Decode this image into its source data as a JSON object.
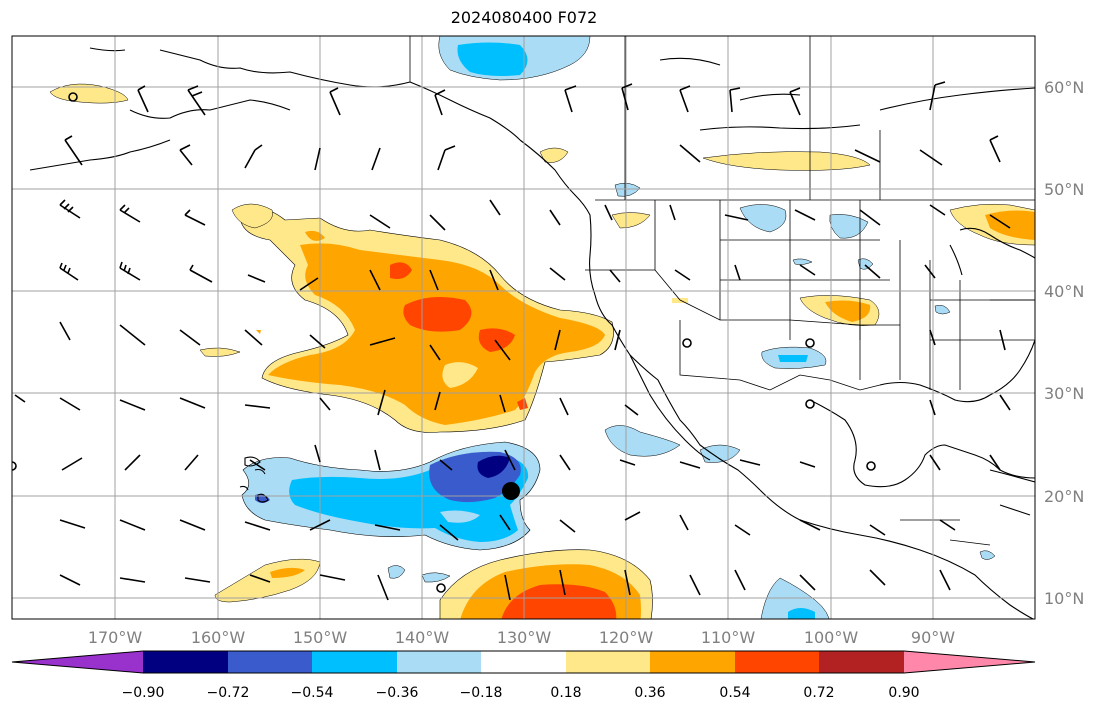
{
  "title": "2024080400 F072",
  "longitude_labels": [
    "170°W",
    "160°W",
    "150°W",
    "140°W",
    "130°W",
    "120°W",
    "110°W",
    "100°W",
    "90°W"
  ],
  "latitude_labels": [
    "60°N",
    "50°N",
    "40°N",
    "30°N",
    "20°N",
    "10°N"
  ],
  "colorbar": {
    "tick_labels": [
      "−0.90",
      "−0.72",
      "−0.54",
      "−0.36",
      "−0.18",
      "0.18",
      "0.36",
      "0.54",
      "0.72",
      "0.90"
    ],
    "colors": [
      "#9932cc",
      "#000080",
      "#3a5bcc",
      "#00bfff",
      "#aadcf5",
      "#ffffff",
      "#ffe88a",
      "#ffa500",
      "#ff4500",
      "#b22222",
      "#ff88aa"
    ]
  },
  "colors": {
    "light_yellow": "#ffe88a",
    "orange": "#ffa500",
    "red_orange": "#ff4500",
    "light_blue": "#aadcf5",
    "deep_sky_blue": "#00bfff",
    "royal_blue": "#3a5bcc",
    "navy": "#000080",
    "grid": "#a0a0a0",
    "coastline": "#000000"
  }
}
